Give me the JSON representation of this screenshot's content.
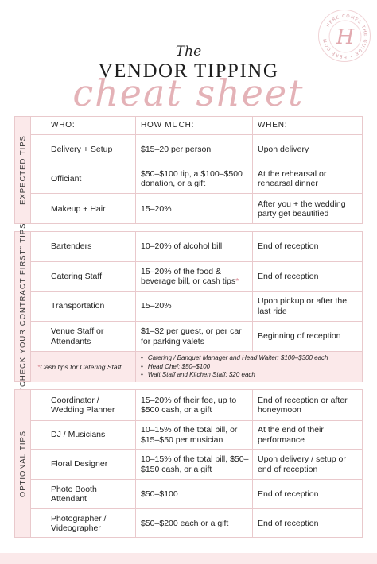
{
  "header": {
    "the": "The",
    "title": "VENDOR TIPPING",
    "script": "cheat sheet",
    "seal_text": "HERE COMES THE GUIDE",
    "seal_letter": "H"
  },
  "columns": {
    "who": "WHO:",
    "how_much": "HOW MUCH:",
    "when": "WHEN:"
  },
  "sections": [
    {
      "label": "EXPECTED TIPS",
      "rows": [
        {
          "who": "Delivery + Setup",
          "how_much": "$15–20 per person",
          "when": "Upon delivery"
        },
        {
          "who": "Officiant",
          "how_much": "$50–$100 tip, a $100–$500 donation, or a gift",
          "when": "At the rehearsal or rehearsal dinner"
        },
        {
          "who": "Makeup + Hair",
          "how_much": "15–20%",
          "when": "After you + the wedding party get beautified"
        }
      ]
    },
    {
      "label": "\"CHECK YOUR CONTRACT FIRST\" TIPS",
      "rows": [
        {
          "who": "Bartenders",
          "how_much": "10–20% of alcohol bill",
          "when": "End of reception"
        },
        {
          "who": "Catering Staff",
          "how_much": "15–20% of the food & beverage bill, or cash tips",
          "how_much_mark": "*",
          "when": "End of reception"
        },
        {
          "who": "Transportation",
          "how_much": "15–20%",
          "when": "Upon pickup or after the last ride"
        },
        {
          "who": "Venue Staff or Attendants",
          "how_much": "$1–$2 per guest, or per car for parking valets",
          "when": "Beginning of reception"
        }
      ],
      "note": {
        "mark": "*",
        "label": "Cash tips for Catering Staff",
        "items": [
          "Catering / Banquet Manager and Head Waiter: $100–$300 each",
          "Head Chef:  $50–$100",
          "Wait Staff and Kitchen Staff: $20 each"
        ]
      }
    },
    {
      "label": "OPTIONAL TIPS",
      "rows": [
        {
          "who": "Coordinator / Wedding Planner",
          "how_much": "15–20% of their fee, up to $500 cash, or a gift",
          "when": "End of reception or after honeymoon"
        },
        {
          "who": "DJ / Musicians",
          "how_much": "10–15% of the total bill, or $15–$50 per musician",
          "when": "At the end of their performance"
        },
        {
          "who": "Floral Designer",
          "how_much": "10–15% of the total bill, $50–$150 cash, or a gift",
          "when": "Upon delivery / setup or end of reception"
        },
        {
          "who": "Photo Booth Attendant",
          "how_much": "$50–$100",
          "when": "End of reception"
        },
        {
          "who": "Photographer / Videographer",
          "how_much": "$50–$200 each or a gift",
          "when": "End of reception"
        }
      ]
    }
  ]
}
